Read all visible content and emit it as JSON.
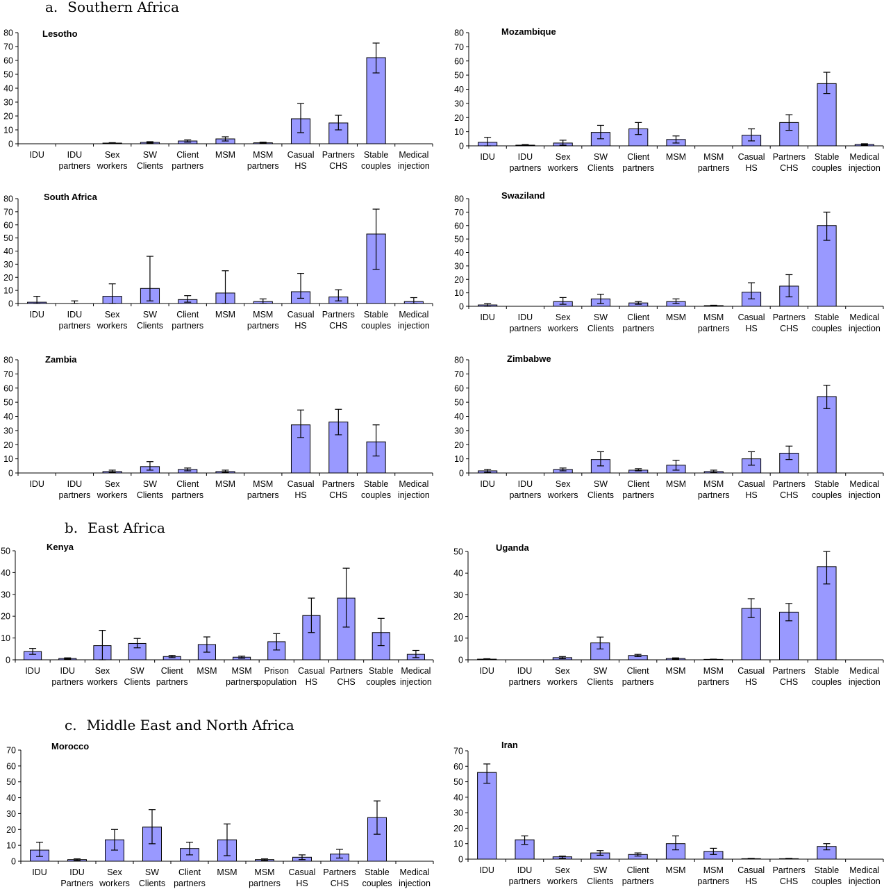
{
  "sections": [
    {
      "label": "a.",
      "title": "Southern Africa"
    },
    {
      "label": "b.",
      "title": "East Africa"
    },
    {
      "label": "c.",
      "title": "Middle East and North Africa"
    }
  ],
  "chart_data": [
    {
      "type": "bar",
      "title": "Lesotho",
      "ylim": [
        0,
        80
      ],
      "yticks": [
        0,
        10,
        20,
        30,
        40,
        50,
        60,
        70,
        80
      ],
      "categories": [
        [
          "IDU"
        ],
        [
          "IDU",
          "partners"
        ],
        [
          "Sex",
          "workers"
        ],
        [
          "SW",
          "Clients"
        ],
        [
          "Client",
          "partners"
        ],
        [
          "MSM"
        ],
        [
          "MSM",
          "partners"
        ],
        [
          "Casual",
          "HS"
        ],
        [
          "Partners",
          "CHS"
        ],
        [
          "Stable",
          "couples"
        ],
        [
          "Medical",
          "injection"
        ]
      ],
      "values": [
        0,
        0,
        0.5,
        1,
        2,
        3.5,
        0.7,
        18,
        15,
        62,
        0
      ],
      "error_low": [
        0,
        0,
        0.2,
        0.5,
        1.2,
        2,
        0.3,
        8,
        10,
        51,
        0
      ],
      "error_high": [
        0,
        0,
        0.8,
        1.5,
        2.8,
        5,
        1.2,
        29,
        20.5,
        72.5,
        0
      ]
    },
    {
      "type": "bar",
      "title": "Mozambique",
      "ylim": [
        0,
        80
      ],
      "yticks": [
        0,
        10,
        20,
        30,
        40,
        50,
        60,
        70,
        80
      ],
      "categories": [
        [
          "IDU"
        ],
        [
          "IDU",
          "partners"
        ],
        [
          "Sex",
          "workers"
        ],
        [
          "SW",
          "Clients"
        ],
        [
          "Client",
          "partners"
        ],
        [
          "MSM"
        ],
        [
          "MSM",
          "partners"
        ],
        [
          "Casual",
          "HS"
        ],
        [
          "Partners",
          "CHS"
        ],
        [
          "Stable",
          "couples"
        ],
        [
          "Medical",
          "injection"
        ]
      ],
      "values": [
        2.5,
        0.5,
        2,
        9.5,
        12,
        4.5,
        0,
        7.5,
        16.5,
        44,
        1
      ],
      "error_low": [
        0,
        0.1,
        0.5,
        5,
        8,
        2,
        0,
        3.5,
        11,
        37,
        0.5
      ],
      "error_high": [
        6,
        0.9,
        4,
        14.5,
        16.5,
        7,
        0,
        12,
        22,
        52,
        1.5
      ]
    },
    {
      "type": "bar",
      "title": "South Africa",
      "ylim": [
        0,
        80
      ],
      "yticks": [
        0,
        10,
        20,
        30,
        40,
        50,
        60,
        70,
        80
      ],
      "categories": [
        [
          "IDU"
        ],
        [
          "IDU",
          "partners"
        ],
        [
          "Sex",
          "workers"
        ],
        [
          "SW",
          "Clients"
        ],
        [
          "Client",
          "partners"
        ],
        [
          "MSM"
        ],
        [
          "MSM",
          "partners"
        ],
        [
          "Casual",
          "HS"
        ],
        [
          "Partners",
          "CHS"
        ],
        [
          "Stable",
          "couples"
        ],
        [
          "Medical",
          "injection"
        ]
      ],
      "values": [
        1,
        0,
        5.5,
        11.5,
        3,
        8,
        1.5,
        9,
        5,
        53,
        1.5
      ],
      "error_low": [
        0,
        0,
        0,
        2,
        1,
        0,
        0,
        4,
        2,
        26,
        0
      ],
      "error_high": [
        5.5,
        2,
        15,
        36,
        6,
        25,
        3.5,
        23,
        10.5,
        72,
        4.5
      ]
    },
    {
      "type": "bar",
      "title": "Swaziland",
      "ylim": [
        0,
        80
      ],
      "yticks": [
        0,
        10,
        20,
        30,
        40,
        50,
        60,
        70,
        80
      ],
      "categories": [
        [
          "IDU"
        ],
        [
          "IDU",
          "partners"
        ],
        [
          "Sex",
          "workers"
        ],
        [
          "SW",
          "Clients"
        ],
        [
          "Client",
          "partners"
        ],
        [
          "MSM"
        ],
        [
          "MSM",
          "partners"
        ],
        [
          "Casual",
          "HS"
        ],
        [
          "Partners",
          "CHS"
        ],
        [
          "Stable",
          "couples"
        ],
        [
          "Medical",
          "injection"
        ]
      ],
      "values": [
        1,
        0,
        3.5,
        5.5,
        2.5,
        3.5,
        0.5,
        10.5,
        15,
        60,
        0
      ],
      "error_low": [
        0,
        0,
        1.5,
        2,
        1.5,
        2,
        0.2,
        5.5,
        7,
        49,
        0
      ],
      "error_high": [
        2,
        0,
        6.5,
        9,
        3.5,
        5.5,
        0.8,
        17.5,
        23.5,
        70,
        0
      ]
    },
    {
      "type": "bar",
      "title": "Zambia",
      "ylim": [
        0,
        80
      ],
      "yticks": [
        0,
        10,
        20,
        30,
        40,
        50,
        60,
        70,
        80
      ],
      "categories": [
        [
          "IDU"
        ],
        [
          "IDU",
          "partners"
        ],
        [
          "Sex",
          "workers"
        ],
        [
          "SW",
          "Clients"
        ],
        [
          "Client",
          "partners"
        ],
        [
          "MSM"
        ],
        [
          "MSM",
          "partners"
        ],
        [
          "Casual",
          "HS"
        ],
        [
          "Partners",
          "CHS"
        ],
        [
          "Stable",
          "couples"
        ],
        [
          "Medical",
          "injection"
        ]
      ],
      "values": [
        0,
        0,
        1,
        4.5,
        2.5,
        1,
        0,
        34,
        36,
        22,
        0
      ],
      "error_low": [
        0,
        0,
        0.5,
        2,
        1.5,
        0.5,
        0,
        25,
        27,
        12,
        0
      ],
      "error_high": [
        0,
        0,
        2,
        8,
        3.5,
        2,
        0,
        44.5,
        45,
        34,
        0
      ]
    },
    {
      "type": "bar",
      "title": "Zimbabwe",
      "ylim": [
        0,
        80
      ],
      "yticks": [
        0,
        10,
        20,
        30,
        40,
        50,
        60,
        70,
        80
      ],
      "categories": [
        [
          "IDU"
        ],
        [
          "IDU",
          "partners"
        ],
        [
          "Sex",
          "workers"
        ],
        [
          "SW",
          "Clients"
        ],
        [
          "Client",
          "partners"
        ],
        [
          "MSM"
        ],
        [
          "MSM",
          "partners"
        ],
        [
          "Casual",
          "HS"
        ],
        [
          "Partners",
          "CHS"
        ],
        [
          "Stable",
          "couples"
        ],
        [
          "Medical",
          "injection"
        ]
      ],
      "values": [
        1.5,
        0,
        2.5,
        9.5,
        2,
        5.5,
        1,
        10,
        14,
        54,
        0
      ],
      "error_low": [
        0.5,
        0,
        1.5,
        5,
        1.5,
        2,
        0.3,
        5.5,
        9.5,
        45.5,
        0
      ],
      "error_high": [
        2.5,
        0,
        3.5,
        15,
        3,
        9,
        2,
        15,
        19,
        62,
        0
      ]
    },
    {
      "type": "bar",
      "title": "Kenya",
      "ylim": [
        0,
        50
      ],
      "yticks": [
        0,
        10,
        20,
        30,
        40,
        50
      ],
      "categories": [
        [
          "IDU"
        ],
        [
          "IDU",
          "partners"
        ],
        [
          "Sex",
          "workers"
        ],
        [
          "SW",
          "Clients"
        ],
        [
          "Client",
          "partners"
        ],
        [
          "MSM"
        ],
        [
          "MSM",
          "partners"
        ],
        [
          "Prison",
          "population"
        ],
        [
          "Casual",
          "HS"
        ],
        [
          "Partners",
          "CHS"
        ],
        [
          "Stable",
          "couples"
        ],
        [
          "Medical",
          "injection"
        ]
      ],
      "values": [
        3.8,
        0.6,
        6.5,
        7.5,
        1.5,
        7,
        1.2,
        8.3,
        20.3,
        28.3,
        12.5,
        2.5
      ],
      "error_low": [
        2.5,
        0.3,
        0,
        5.5,
        1,
        3.5,
        0.7,
        4.5,
        12.5,
        15,
        6.5,
        1
      ],
      "error_high": [
        5.2,
        0.9,
        13.5,
        9.8,
        2,
        10.5,
        1.7,
        12,
        28.3,
        42,
        19,
        4.3
      ]
    },
    {
      "type": "bar",
      "title": "Uganda",
      "ylim": [
        0,
        50
      ],
      "yticks": [
        0,
        10,
        20,
        30,
        40,
        50
      ],
      "categories": [
        [
          "IDU"
        ],
        [
          "IDU",
          "partners"
        ],
        [
          "Sex",
          "workers"
        ],
        [
          "SW",
          "Clients"
        ],
        [
          "Client",
          "partners"
        ],
        [
          "MSM"
        ],
        [
          "MSM",
          "partners"
        ],
        [
          "Casual",
          "HS"
        ],
        [
          "Partners",
          "CHS"
        ],
        [
          "Stable",
          "couples"
        ],
        [
          "Medical",
          "injection"
        ]
      ],
      "values": [
        0.3,
        0,
        1,
        7.8,
        2,
        0.6,
        0.2,
        23.7,
        22,
        43,
        0
      ],
      "error_low": [
        0.1,
        0,
        0.5,
        5,
        1.5,
        0.3,
        0.1,
        19.5,
        18,
        35,
        0
      ],
      "error_high": [
        0.5,
        0,
        1.5,
        10.5,
        2.5,
        0.9,
        0.3,
        28.2,
        26,
        50,
        0
      ]
    },
    {
      "type": "bar",
      "title": "Morocco",
      "ylim": [
        0,
        70
      ],
      "yticks": [
        0,
        10,
        20,
        30,
        40,
        50,
        60,
        70
      ],
      "categories": [
        [
          "IDU"
        ],
        [
          "IDU",
          "Partners"
        ],
        [
          "Sex",
          "workers"
        ],
        [
          "SW",
          "Clients"
        ],
        [
          "Client",
          "partners"
        ],
        [
          "MSM"
        ],
        [
          "MSM",
          "partners"
        ],
        [
          "Casual",
          "HS"
        ],
        [
          "Partners",
          "CHS"
        ],
        [
          "Stable",
          "couples"
        ],
        [
          "Medical",
          "injection"
        ]
      ],
      "values": [
        7,
        1,
        13.5,
        21.5,
        8,
        13.5,
        1,
        2.5,
        4.5,
        27.5,
        0
      ],
      "error_low": [
        3,
        0.5,
        7,
        11,
        4,
        3.5,
        0.5,
        1,
        2,
        17,
        0
      ],
      "error_high": [
        12,
        1.5,
        20,
        32.5,
        12,
        23.5,
        1.5,
        4,
        7.5,
        38,
        0
      ]
    },
    {
      "type": "bar",
      "title": "Iran",
      "ylim": [
        0,
        70
      ],
      "yticks": [
        0,
        10,
        20,
        30,
        40,
        50,
        60,
        70
      ],
      "categories": [
        [
          "IDU"
        ],
        [
          "IDU",
          "partners"
        ],
        [
          "Sex",
          "workers"
        ],
        [
          "SW",
          "Clients"
        ],
        [
          "Client",
          "partners"
        ],
        [
          "MSM"
        ],
        [
          "MSM",
          "partners"
        ],
        [
          "Casual",
          "HS"
        ],
        [
          "Partners",
          "CHS"
        ],
        [
          "Stable",
          "couples"
        ],
        [
          "Medical",
          "injection"
        ]
      ],
      "values": [
        56,
        12.5,
        1.5,
        4,
        3,
        10,
        5,
        0.3,
        0.3,
        8.2,
        0
      ],
      "error_low": [
        49,
        9.5,
        0.5,
        2.5,
        2,
        6,
        3,
        0.1,
        0.1,
        6,
        0
      ],
      "error_high": [
        61.5,
        15,
        2,
        5.5,
        4,
        15,
        7,
        0.5,
        0.5,
        10,
        0
      ]
    }
  ]
}
